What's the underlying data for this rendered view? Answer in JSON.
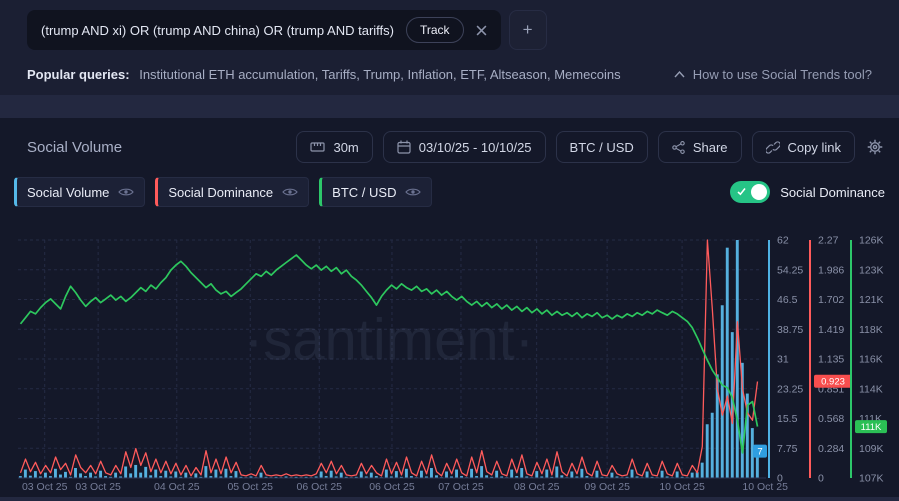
{
  "query_bar": {
    "query": "(trump AND xi) OR (trump AND china) OR (trump AND tariffs)",
    "track_label": "Track",
    "add_label": "+"
  },
  "popular_queries": {
    "label": "Popular queries:",
    "items": "Institutional ETH accumulation, Tariffs, Trump, Inflation, ETF, Altseason, Memecoins",
    "help_link": "How to use Social Trends tool?"
  },
  "toolbar": {
    "title": "Social Volume",
    "interval_label": "30m",
    "date_range_label": "03/10/25 - 10/10/25",
    "asset_label": "BTC / USD",
    "share_label": "Share",
    "copy_link_label": "Copy link"
  },
  "legend": {
    "items": [
      {
        "label": "Social Volume",
        "color": "#55b8e8"
      },
      {
        "label": "Social Dominance",
        "color": "#ff5b5b"
      },
      {
        "label": "BTC / USD",
        "color": "#2dc76a"
      }
    ],
    "toggle_label": "Social Dominance",
    "toggle_on": true,
    "toggle_color": "#26c486"
  },
  "watermark": "·santiment·",
  "colors": {
    "page_bg": "#232840",
    "top_panel_bg": "#1b1f33",
    "chart_panel_bg": "#141829",
    "gridline": "#252b45",
    "axis_blue": "#4fb2e5",
    "axis_red": "#ff5b5b",
    "axis_green": "#2dc76a"
  },
  "chart_data": {
    "type": "mixed",
    "title": "Social Volume",
    "x_ticks": [
      {
        "label": "03 Oct 25",
        "pos": 0.036
      },
      {
        "label": "03 Oct 25",
        "pos": 0.108
      },
      {
        "label": "04 Oct 25",
        "pos": 0.214
      },
      {
        "label": "05 Oct 25",
        "pos": 0.313
      },
      {
        "label": "06 Oct 25",
        "pos": 0.406
      },
      {
        "label": "06 Oct 25",
        "pos": 0.504
      },
      {
        "label": "07 Oct 25",
        "pos": 0.597
      },
      {
        "label": "08 Oct 25",
        "pos": 0.699
      },
      {
        "label": "09 Oct 25",
        "pos": 0.794
      },
      {
        "label": "10 Oct 25",
        "pos": 0.895
      },
      {
        "label": "10 Oct 25",
        "pos": 1.007
      }
    ],
    "axes": [
      {
        "name": "volume",
        "color": "#4fb2e5",
        "min": 0,
        "max": 62,
        "ticks": [
          "62",
          "54.25",
          "46.5",
          "38.75",
          "31",
          "23.25",
          "15.5",
          "7.75",
          "0"
        ],
        "last_value": 7,
        "last_label": "7",
        "badge_color": "#2f9ee0",
        "badge_side": "left"
      },
      {
        "name": "dominance",
        "color": "#ff5b5b",
        "min": 0,
        "max": 2.27,
        "ticks": [
          "2.27",
          "1.986",
          "1.702",
          "1.419",
          "1.135",
          "0.851",
          "0.568",
          "0.284",
          "0"
        ],
        "last_value": 0.923,
        "last_label": "0.923",
        "badge_color": "#f84e4e",
        "badge_side": "right"
      },
      {
        "name": "price",
        "color": "#2dc76a",
        "min": 107,
        "max": 126,
        "ticks": [
          "126K",
          "123K",
          "121K",
          "118K",
          "116K",
          "114K",
          "111K",
          "109K",
          "107K"
        ],
        "last_value": 111.1,
        "last_label": "111K",
        "badge_color": "#2bbf55",
        "badge_side": "right"
      }
    ],
    "series": [
      {
        "name": "Social Volume",
        "type": "bar",
        "axis": 0,
        "color": "#58b8e8",
        "values": [
          0.5,
          2.2,
          0.6,
          1.8,
          0.4,
          1.4,
          0.5,
          2.4,
          0.9,
          1.6,
          0.3,
          2.6,
          1.2,
          0.5,
          1.4,
          0.4,
          1.9,
          0.5,
          0.3,
          1.4,
          0.4,
          3.0,
          1.2,
          3.4,
          1.4,
          2.9,
          0.7,
          2.2,
          0.5,
          1.9,
          0.4,
          1.7,
          0.3,
          1.4,
          0.2,
          1.2,
          0.3,
          3.1,
          0.5,
          2.2,
          0.4,
          2.4,
          0.5,
          1.8,
          0.3,
          0.2,
          0.4,
          0.2,
          1.4,
          0.3,
          0.2,
          0.3,
          0.2,
          0.4,
          0.2,
          0.3,
          0.2,
          0.3,
          0.2,
          0.4,
          1.7,
          0.5,
          1.9,
          0.4,
          1.4,
          0.3,
          0.2,
          0.3,
          1.7,
          0.4,
          1.4,
          0.5,
          0.2,
          2.2,
          0.4,
          1.8,
          0.3,
          2.4,
          0.5,
          0.2,
          1.9,
          0.4,
          2.6,
          0.7,
          0.2,
          1.7,
          0.4,
          2.2,
          0.5,
          0.2,
          2.4,
          0.5,
          3.1,
          0.7,
          0.3,
          1.9,
          0.4,
          0.2,
          2.2,
          0.5,
          2.6,
          0.4,
          0.2,
          1.8,
          0.4,
          2.2,
          0.3,
          3.0,
          0.7,
          0.2,
          1.7,
          0.4,
          2.4,
          0.5,
          0.2,
          1.9,
          0.3,
          0.2,
          1.4,
          0.4,
          0.2,
          0.3,
          2.2,
          0.4,
          0.2,
          1.7,
          0.3,
          0.2,
          1.9,
          0.4,
          0.2,
          1.7,
          0.3,
          0.2,
          1.4,
          1.5,
          4,
          14,
          17,
          27,
          45,
          60,
          38,
          62,
          30,
          22,
          13,
          7
        ]
      },
      {
        "name": "Social Dominance",
        "type": "line",
        "axis": 1,
        "color": "#ff5b5b",
        "values": [
          0.05,
          0.18,
          0.06,
          0.15,
          0.04,
          0.12,
          0.05,
          0.2,
          0.08,
          0.14,
          0.03,
          0.22,
          0.1,
          0.05,
          0.12,
          0.04,
          0.16,
          0.05,
          0.03,
          0.12,
          0.04,
          0.25,
          0.1,
          0.28,
          0.12,
          0.24,
          0.06,
          0.18,
          0.05,
          0.16,
          0.04,
          0.14,
          0.03,
          0.12,
          0.02,
          0.1,
          0.03,
          0.26,
          0.05,
          0.18,
          0.04,
          0.2,
          0.05,
          0.15,
          0.03,
          0.02,
          0.04,
          0.02,
          0.12,
          0.03,
          0.02,
          0.03,
          0.02,
          0.04,
          0.02,
          0.03,
          0.02,
          0.03,
          0.02,
          0.04,
          0.14,
          0.05,
          0.16,
          0.04,
          0.12,
          0.03,
          0.02,
          0.03,
          0.14,
          0.04,
          0.12,
          0.05,
          0.02,
          0.18,
          0.04,
          0.15,
          0.03,
          0.2,
          0.05,
          0.02,
          0.16,
          0.04,
          0.22,
          0.06,
          0.02,
          0.14,
          0.04,
          0.18,
          0.05,
          0.02,
          0.2,
          0.05,
          0.26,
          0.06,
          0.03,
          0.16,
          0.04,
          0.02,
          0.18,
          0.05,
          0.22,
          0.04,
          0.02,
          0.15,
          0.04,
          0.18,
          0.03,
          0.25,
          0.06,
          0.02,
          0.14,
          0.04,
          0.2,
          0.05,
          0.02,
          0.16,
          0.03,
          0.02,
          0.12,
          0.04,
          0.02,
          0.03,
          0.18,
          0.04,
          0.02,
          0.14,
          0.03,
          0.02,
          0.16,
          0.04,
          0.02,
          0.14,
          0.03,
          0.02,
          0.12,
          0.05,
          0.3,
          2.27,
          1.6,
          0.85,
          0.6,
          0.78,
          0.52,
          1.49,
          0.85,
          0.62,
          0.55,
          0.92
        ]
      },
      {
        "name": "BTC / USD",
        "type": "line",
        "axis": 2,
        "color": "#2dc75e",
        "values": [
          119.3,
          119.8,
          120.3,
          120.1,
          120.6,
          121.0,
          121.3,
          120.9,
          120.5,
          121.5,
          122.3,
          121.8,
          121.2,
          120.7,
          121.1,
          121.4,
          121.0,
          121.3,
          121.6,
          121.2,
          121.5,
          121.1,
          121.4,
          121.8,
          122.2,
          121.9,
          122.4,
          122.1,
          122.6,
          123.0,
          123.6,
          124.0,
          124.3,
          123.9,
          123.4,
          123.0,
          122.6,
          122.2,
          122.5,
          122.0,
          121.7,
          121.9,
          121.5,
          121.8,
          122.1,
          122.5,
          122.9,
          123.3,
          123.1,
          123.5,
          123.2,
          123.6,
          123.9,
          124.2,
          124.5,
          124.8,
          124.4,
          124.0,
          123.7,
          124.0,
          123.6,
          123.9,
          123.5,
          123.8,
          123.3,
          123.6,
          123.1,
          122.8,
          122.4,
          121.9,
          121.4,
          120.8,
          121.5,
          122.0,
          122.4,
          122.1,
          122.5,
          122.2,
          122.0,
          122.3,
          121.9,
          122.1,
          121.7,
          122.0,
          121.6,
          121.9,
          121.5,
          121.2,
          121.5,
          121.1,
          120.8,
          121.1,
          120.7,
          121.0,
          120.6,
          120.9,
          120.5,
          120.8,
          120.4,
          120.7,
          120.3,
          120.6,
          120.2,
          120.5,
          120.1,
          120.4,
          120.0,
          120.3,
          120.0,
          120.2,
          119.9,
          120.2,
          119.8,
          120.1,
          119.9,
          120.2,
          119.8,
          120.0,
          119.7,
          120.0,
          119.8,
          120.1,
          119.9,
          120.2,
          120.0,
          120.3,
          120.1,
          120.4,
          120.2,
          120.0,
          120.3,
          120.1,
          119.8,
          119.5,
          119.0,
          118.2,
          117.3,
          116.4,
          115.6,
          115.0,
          114.4,
          114.2,
          113.4,
          111.6,
          109.0,
          112.8,
          113.1,
          111.1
        ]
      }
    ]
  }
}
